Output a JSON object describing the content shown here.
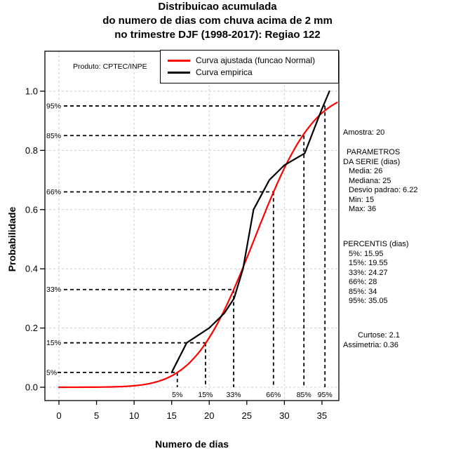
{
  "title": {
    "line1": "Distribuicao acumulada",
    "line2": "do numero de dias com chuva acima de 2 mm",
    "line3": "no trimestre DJF (1998-2017): Regiao 122"
  },
  "watermark": "Produto: CPTEC/INPE",
  "legend": {
    "items": [
      {
        "label": "Curva ajustada (funcao Normal)",
        "color": "#ff0000"
      },
      {
        "label": "Curva empirica",
        "color": "#000000"
      }
    ]
  },
  "side_panel": {
    "amostra": "Amostra: 20",
    "param_header_1": "PARAMETROS",
    "param_header_2": "DA SERIE (dias)",
    "param_lines": [
      "Media: 26",
      "Mediana: 25",
      "Desvio padrao: 6.22",
      "Min: 15",
      "Max: 36"
    ],
    "percentis_header": "PERCENTIS (dias)",
    "percentis_lines": [
      "5%: 15.95",
      "15%: 19.55",
      "33%: 24.27",
      "66%: 28",
      "85%: 34",
      "95%: 35.05"
    ],
    "curtose": "Curtose: 2.1",
    "assimetria": "Assimetria: 0.36"
  },
  "chart_data": {
    "type": "line",
    "xlabel": "Numero de dias",
    "ylabel": "Probabilidade",
    "xlim": [
      -1.87,
      37.25
    ],
    "ylim": [
      -0.045,
      1.135
    ],
    "x_ticks": [
      0,
      5,
      10,
      15,
      20,
      25,
      30,
      35
    ],
    "y_ticks": [
      0.0,
      0.2,
      0.4,
      0.6,
      0.8,
      1.0
    ],
    "y_tick_labels": [
      "0.0",
      "0.2",
      "0.4",
      "0.6",
      "0.8",
      "1.0"
    ],
    "grid_x": [
      0,
      10,
      20,
      30
    ],
    "grid_y": [
      0.0,
      0.2,
      0.4,
      0.6,
      0.8,
      1.0
    ],
    "grid_color": "#cdcdcd",
    "series": [
      {
        "name": "Curva ajustada (funcao Normal)",
        "type": "normal_cdf",
        "color": "#ff0000",
        "mean": 26,
        "sd": 6.22,
        "x_start": 0,
        "x_end": 37.2
      },
      {
        "name": "Curva empirica",
        "type": "polyline",
        "color": "#000000",
        "points": [
          [
            15,
            0.05
          ],
          [
            16,
            0.1
          ],
          [
            17,
            0.15
          ],
          [
            20,
            0.2
          ],
          [
            22,
            0.25
          ],
          [
            23.3,
            0.3
          ],
          [
            24.5,
            0.4
          ],
          [
            25.2,
            0.5
          ],
          [
            25.9,
            0.6
          ],
          [
            28,
            0.7
          ],
          [
            30,
            0.75
          ],
          [
            32.7,
            0.79
          ],
          [
            34,
            0.875
          ],
          [
            35,
            0.94
          ],
          [
            36,
            1.0
          ]
        ]
      }
    ],
    "percentile_markers": [
      {
        "label": "5%",
        "p": 0.05,
        "x": 15.75
      },
      {
        "label": "15%",
        "p": 0.15,
        "x": 19.5
      },
      {
        "label": "33%",
        "p": 0.33,
        "x": 23.25
      },
      {
        "label": "66%",
        "p": 0.66,
        "x": 28.55
      },
      {
        "label": "85%",
        "p": 0.85,
        "x": 32.6
      },
      {
        "label": "95%",
        "p": 0.95,
        "x": 35.4
      }
    ]
  }
}
